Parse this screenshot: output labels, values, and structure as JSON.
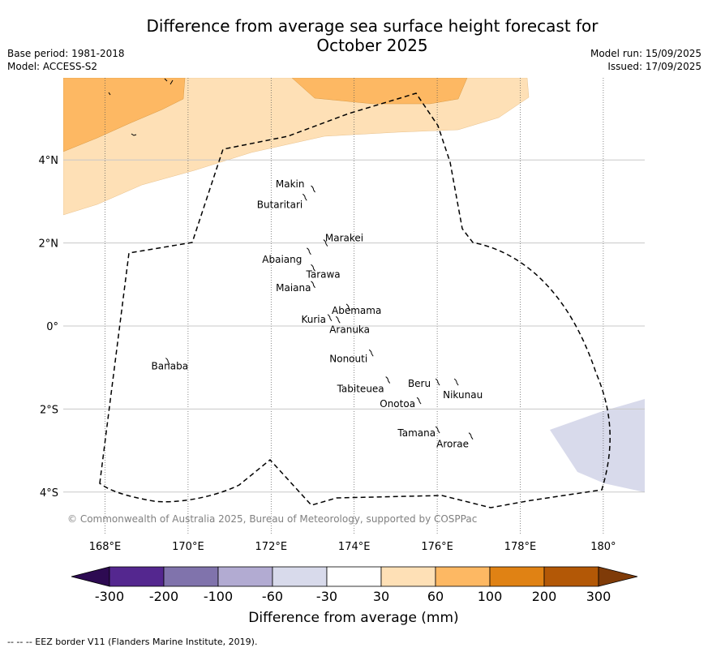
{
  "title_line1": "Difference from average sea surface height forecast for",
  "title_line2": "October 2025",
  "meta_left": [
    "Base period: 1981-2018",
    "Model: ACCESS-S2"
  ],
  "meta_right": [
    "Model run: 15/09/2025",
    "Issued: 17/09/2025"
  ],
  "copyright": "© Commonwealth of Australia 2025, Bureau of Meteorology, supported by COSPPac",
  "lon_ticks": [
    {
      "lon": 168,
      "label": "168°E"
    },
    {
      "lon": 170,
      "label": "170°E"
    },
    {
      "lon": 172,
      "label": "172°E"
    },
    {
      "lon": 174,
      "label": "174°E"
    },
    {
      "lon": 176,
      "label": "176°E"
    },
    {
      "lon": 178,
      "label": "178°E"
    },
    {
      "lon": 180,
      "label": "180°"
    }
  ],
  "lat_ticks": [
    {
      "lat": 4,
      "label": "4°N"
    },
    {
      "lat": 2,
      "label": "2°N"
    },
    {
      "lat": 0,
      "label": "0°"
    },
    {
      "lat": -2,
      "label": "2°S"
    },
    {
      "lat": -4,
      "label": "4°S"
    }
  ],
  "islands": [
    {
      "name": "Makin",
      "lon": 173.0,
      "lat": 3.3
    },
    {
      "name": "Butaritari",
      "lon": 172.8,
      "lat": 3.1
    },
    {
      "name": "Marakei",
      "lon": 173.3,
      "lat": 2.0
    },
    {
      "name": "Abaiang",
      "lon": 172.9,
      "lat": 1.8
    },
    {
      "name": "Tarawa",
      "lon": 173.0,
      "lat": 1.4
    },
    {
      "name": "Maiana",
      "lon": 173.0,
      "lat": 1.0
    },
    {
      "name": "Abemama",
      "lon": 173.85,
      "lat": 0.45
    },
    {
      "name": "Kuria",
      "lon": 173.4,
      "lat": 0.2
    },
    {
      "name": "Aranuka",
      "lon": 173.6,
      "lat": 0.15
    },
    {
      "name": "Nonouti",
      "lon": 174.4,
      "lat": -0.65
    },
    {
      "name": "Banaba",
      "lon": 169.5,
      "lat": -0.85
    },
    {
      "name": "Tabiteuea",
      "lon": 174.8,
      "lat": -1.3
    },
    {
      "name": "Beru",
      "lon": 176.0,
      "lat": -1.35
    },
    {
      "name": "Nikunau",
      "lon": 176.45,
      "lat": -1.35
    },
    {
      "name": "Onotoa",
      "lon": 175.55,
      "lat": -1.8
    },
    {
      "name": "Tamana",
      "lon": 176.0,
      "lat": -2.5
    },
    {
      "name": "Arorae",
      "lon": 176.8,
      "lat": -2.65
    }
  ],
  "colorbar": {
    "bins": [
      {
        "from": "<-300",
        "to": -300,
        "color": "#2d0a52"
      },
      {
        "from": -300,
        "to": -200,
        "color": "#54278f"
      },
      {
        "from": -200,
        "to": -100,
        "color": "#8073ac"
      },
      {
        "from": -100,
        "to": -60,
        "color": "#b2abd2"
      },
      {
        "from": -60,
        "to": -30,
        "color": "#d8daeb"
      },
      {
        "from": -30,
        "to": 30,
        "color": "#ffffff"
      },
      {
        "from": 30,
        "to": 60,
        "color": "#fee0b6"
      },
      {
        "from": 60,
        "to": 100,
        "color": "#fdb863"
      },
      {
        "from": 100,
        "to": 200,
        "color": "#e08214"
      },
      {
        "from": 200,
        "to": 300,
        "color": "#b35806"
      },
      {
        "from": 300,
        "to": ">300",
        "color": "#7f3b08"
      }
    ],
    "tick_labels": [
      "-300",
      "-200",
      "-100",
      "-60",
      "-30",
      "30",
      "60",
      "100",
      "200",
      "300"
    ],
    "label": "Difference from average (mm)"
  },
  "footer": "--  --  -- EEZ border V11 (Flanders Marine Institute, 2019).",
  "colors": {
    "pos_30_60": "#fee0b6",
    "pos_60_100": "#fdb863",
    "neg_30_60": "#d8daeb",
    "grid": "#c8c8c8",
    "copyright_text": "#808080"
  }
}
